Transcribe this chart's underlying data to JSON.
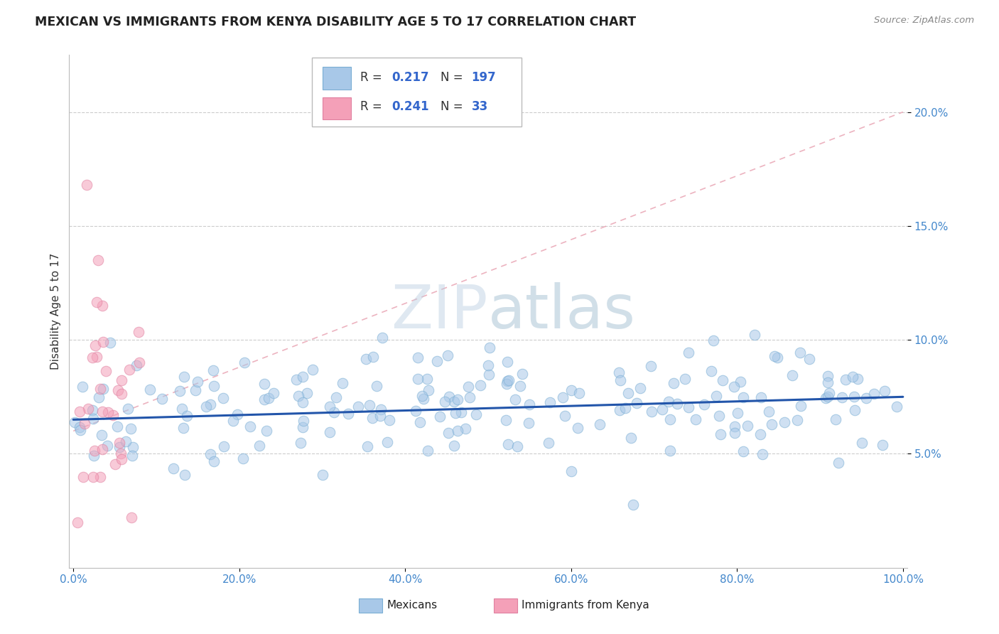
{
  "title": "MEXICAN VS IMMIGRANTS FROM KENYA DISABILITY AGE 5 TO 17 CORRELATION CHART",
  "source": "Source: ZipAtlas.com",
  "ylabel": "Disability Age 5 to 17",
  "blue_scatter_color": "#a8c8e8",
  "blue_scatter_edge": "#7aaed4",
  "pink_scatter_color": "#f4a0b8",
  "pink_scatter_edge": "#e080a0",
  "blue_line_color": "#2255aa",
  "pink_line_color": "#e8a0b0",
  "grid_color": "#cccccc",
  "tick_color": "#4488cc",
  "title_color": "#222222",
  "source_color": "#888888",
  "watermark_color": "#c0d4e8",
  "legend_R_N_color": "#3366cc",
  "legend_text_color": "#333333",
  "bottom_legend_color": "#222222"
}
